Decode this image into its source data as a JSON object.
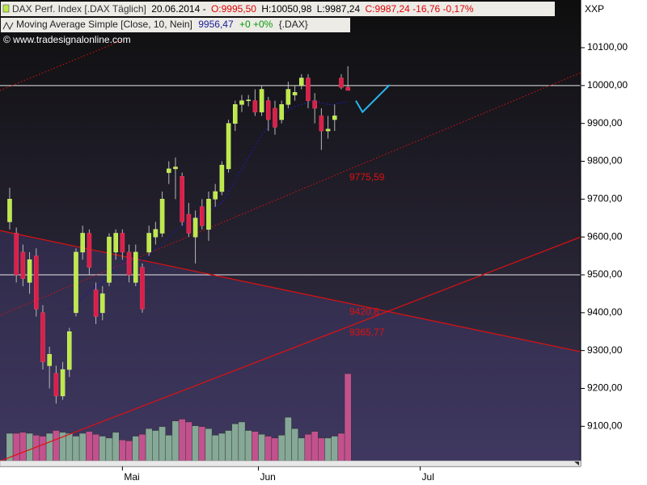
{
  "chart_data": {
    "type": "candlestick",
    "header": {
      "symbol": "DAX Perf. Index [.DAX  Täglich]",
      "date": "20.06.2014 -",
      "open": "O:9995,50",
      "high": "H:10050,98",
      "low": "L:9987,24",
      "close": "C:9987,24 -16,76 -0,17%"
    },
    "indicator": {
      "value": "9956,47",
      "change": "+0 +0%",
      "symbol": "{.DAX}"
    },
    "copyright": "© www.tradesignalonline.com",
    "corner": "XXP",
    "categories": [
      null,
      null,
      null,
      null,
      null,
      null,
      null,
      null,
      null,
      null,
      null,
      null,
      null,
      null,
      null,
      null,
      null,
      null,
      null,
      null,
      null,
      null,
      null,
      null,
      null,
      null,
      null,
      null,
      null,
      null,
      null,
      null,
      null,
      null,
      null,
      null,
      null,
      null,
      null,
      null,
      null,
      null,
      null,
      null,
      null,
      null,
      null,
      null,
      null,
      null,
      null,
      null
    ],
    "open": [
      9640,
      9610,
      9560,
      9480,
      9550,
      9400,
      9260,
      9240,
      9180,
      9250,
      9400,
      9560,
      9610,
      9460,
      9400,
      9480,
      9560,
      9610,
      9560,
      9480,
      9520,
      9560,
      9600,
      9610,
      9770,
      9780,
      9760,
      9660,
      9600,
      9680,
      9620,
      9700,
      9720,
      9780,
      9900,
      9950,
      9960,
      9960,
      9930,
      9960,
      9940,
      9910,
      9950,
      9975,
      10000,
      10020,
      9960,
      9920,
      9880,
      9910,
      10020,
      9995.5
    ],
    "high": [
      9730,
      9625,
      9580,
      9560,
      9570,
      9420,
      9310,
      9260,
      9270,
      9360,
      9570,
      9630,
      9620,
      9480,
      9470,
      9610,
      9620,
      9620,
      9580,
      9580,
      9530,
      9630,
      9640,
      9720,
      9800,
      9810,
      9770,
      9690,
      9670,
      9700,
      9720,
      9740,
      9800,
      9910,
      9960,
      9975,
      9975,
      9990,
      10000,
      9970,
      9960,
      9960,
      10010,
      10000,
      10030,
      10030,
      9980,
      9940,
      9920,
      9950,
      10030,
      10050.98
    ],
    "low": [
      9620,
      9480,
      9470,
      9450,
      9390,
      9250,
      9200,
      9160,
      9170,
      9230,
      9390,
      9540,
      9500,
      9370,
      9380,
      9470,
      9540,
      9540,
      9480,
      9470,
      9400,
      9550,
      9580,
      9600,
      9740,
      9700,
      9630,
      9600,
      9530,
      9620,
      9590,
      9680,
      9710,
      9770,
      9880,
      9930,
      9945,
      9920,
      9920,
      9880,
      9870,
      9900,
      9940,
      9960,
      9990,
      9940,
      9900,
      9830,
      9860,
      9880,
      9990,
      9987.24
    ],
    "close": [
      9700,
      9500,
      9490,
      9540,
      9410,
      9270,
      9290,
      9180,
      9250,
      9350,
      9560,
      9610,
      9520,
      9390,
      9450,
      9600,
      9610,
      9560,
      9500,
      9560,
      9410,
      9610,
      9620,
      9700,
      9780,
      9785,
      9640,
      9610,
      9650,
      9630,
      9700,
      9720,
      9790,
      9900,
      9950,
      9960,
      9962,
      9930,
      9990,
      9910,
      9890,
      9950,
      9990,
      9982,
      10020,
      9960,
      9940,
      9880,
      9885,
      9920,
      9995,
      9987.24
    ],
    "colors": {
      "up": "#bde94a",
      "down": "#d8204a",
      "volume_up": "#86a897",
      "volume_down": "#c2528e"
    },
    "ma": {
      "name": "Moving Average Simple [Close, 10, Nein]",
      "color": "#1c1c96",
      "values": [
        null,
        null,
        null,
        null,
        null,
        null,
        null,
        null,
        null,
        9410,
        9420,
        9440,
        9460,
        9470,
        9480,
        9500,
        9520,
        9530,
        9540,
        9545,
        9540,
        9550,
        9570,
        9580,
        9600,
        9615,
        9630,
        9640,
        9650,
        9660,
        9670,
        9680,
        9690,
        9720,
        9750,
        9780,
        9810,
        9840,
        9870,
        9890,
        9910,
        9925,
        9935,
        9945,
        9950,
        9955,
        9958,
        9955,
        9950,
        9950,
        9955,
        9956.47
      ]
    },
    "volume": {
      "values": [
        35,
        35,
        36,
        35,
        33,
        32,
        35,
        38,
        36,
        35,
        32,
        35,
        37,
        34,
        32,
        30,
        36,
        28,
        27,
        32,
        34,
        40,
        38,
        42,
        33,
        48,
        50,
        47,
        43,
        42,
        40,
        33,
        35,
        38,
        45,
        47,
        38,
        37,
        34,
        32,
        30,
        33,
        52,
        40,
        30,
        34,
        37,
        30,
        30,
        32,
        35,
        98
      ],
      "ylim": [
        0,
        100
      ]
    },
    "hlines": [
      10000,
      9500
    ],
    "trendlines": [
      {
        "label": "9775,59",
        "style": "dotted",
        "x": [
          -1.46,
          86.1
        ],
        "values": [
          9393,
          10034
        ]
      },
      {
        "label": "9420,8",
        "style": "solid",
        "x": [
          -1.46,
          86.1
        ],
        "values": [
          9617,
          9297
        ]
      },
      {
        "label": "9365,77",
        "style": "solid",
        "x": [
          -1.46,
          86.1
        ],
        "values": [
          9008,
          9600
        ]
      },
      {
        "style": "dotted",
        "x": [
          -1.46,
          17
        ],
        "values": [
          9987,
          10120
        ]
      }
    ],
    "projection": {
      "color": "#29b6f0",
      "x": [
        52.2,
        53.2,
        57.3
      ],
      "values": [
        9960,
        9930,
        10002
      ]
    },
    "xlim": [
      -1.46,
      86.1
    ],
    "xticks": [
      {
        "value": 17,
        "label": "Mai"
      },
      {
        "value": 37.5,
        "label": "Jun"
      },
      {
        "value": 61.9,
        "label": "Jul"
      }
    ],
    "ylim": [
      8994,
      10226
    ],
    "yticks": [
      {
        "value": 9100,
        "label": "9100,00"
      },
      {
        "value": 9200,
        "label": "9200,00"
      },
      {
        "value": 9300,
        "label": "9300,00"
      },
      {
        "value": 9400,
        "label": "9400,00"
      },
      {
        "value": 9500,
        "label": "9500,00"
      },
      {
        "value": 9600,
        "label": "9600,00"
      },
      {
        "value": 9700,
        "label": "9700,00"
      },
      {
        "value": 9800,
        "label": "9800,00"
      },
      {
        "value": 9900,
        "label": "9900,00"
      },
      {
        "value": 10000,
        "label": "10000,00"
      },
      {
        "value": 10100,
        "label": "10100,00"
      }
    ],
    "grid": false
  }
}
